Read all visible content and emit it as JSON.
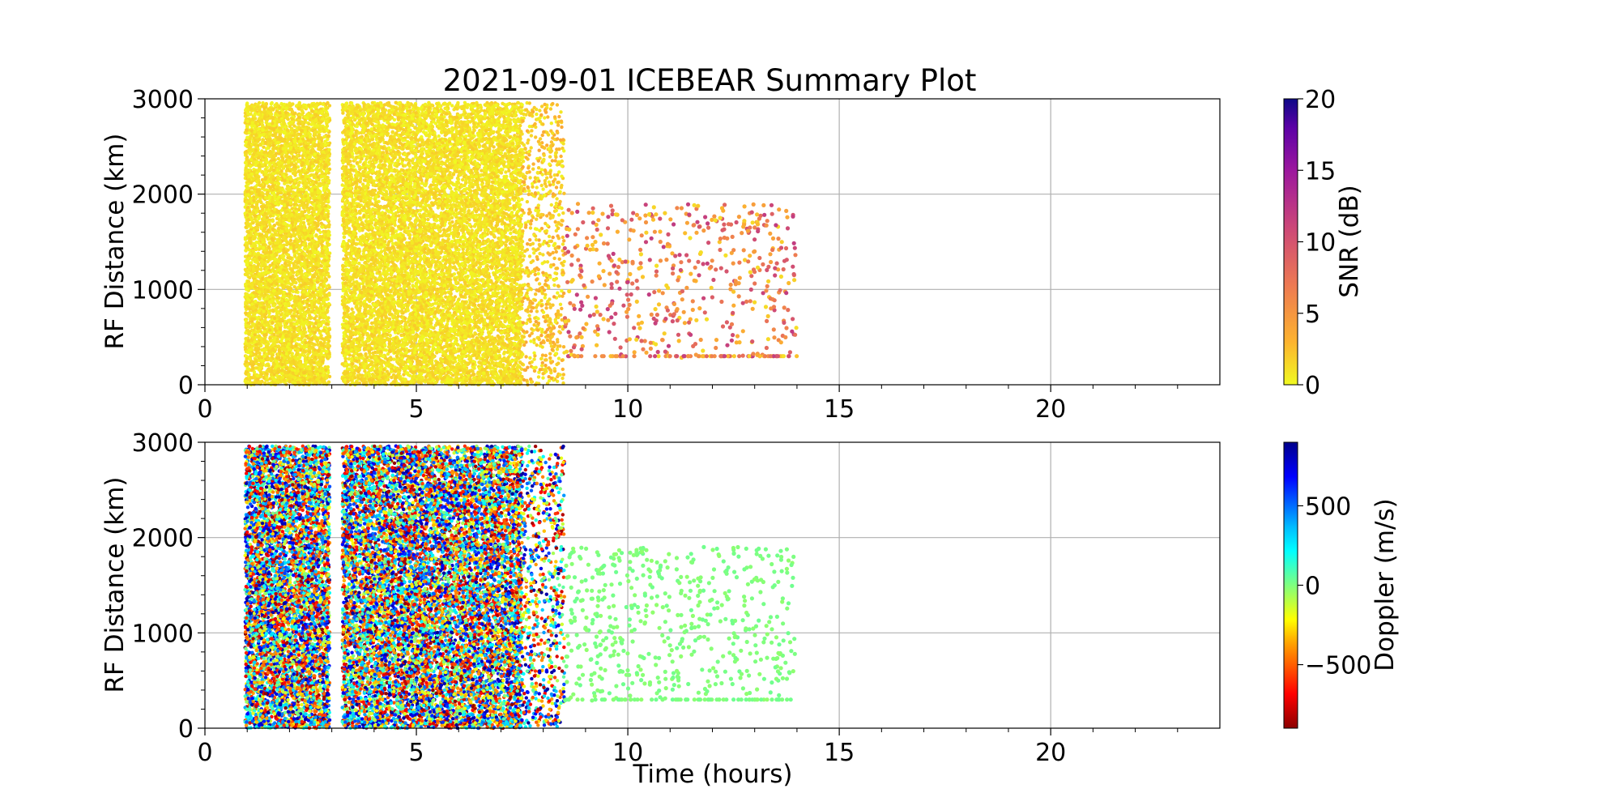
{
  "title": "2021-09-01 ICEBEAR Summary Plot",
  "xlabel": "Time (hours)",
  "colors": {
    "snr_low": "#f0f921",
    "snr_mid": "#e16462",
    "snr_high": "#0d0887",
    "doppler_positive": "#00008b",
    "doppler_zero": "#7fff7f",
    "doppler_negative": "#8b0000",
    "grid": "#b0b0b0"
  },
  "chart_data": [
    {
      "type": "scatter",
      "ylabel": "RF Distance (km)",
      "colorbar_label": "SNR (dB)",
      "colormap": "plasma_r",
      "xlim": [
        0,
        24
      ],
      "ylim": [
        0,
        3000
      ],
      "x_ticks": [
        "0",
        "5",
        "10",
        "15",
        "20"
      ],
      "y_ticks": [
        "0",
        "1000",
        "2000",
        "3000"
      ],
      "colorbar_ticks": [
        "0",
        "5",
        "10",
        "15",
        "20"
      ],
      "colorbar_range": [
        0,
        20
      ],
      "grid": true,
      "segments": [
        {
          "time_range": [
            0.95,
            2.95
          ],
          "distance_range": [
            0,
            2960
          ],
          "value_range": [
            0,
            2
          ],
          "density": "dense"
        },
        {
          "time_range": [
            3.25,
            7.5
          ],
          "distance_range": [
            0,
            2960
          ],
          "value_range": [
            0,
            2
          ],
          "density": "dense"
        },
        {
          "time_range": [
            7.5,
            8.5
          ],
          "distance_range": [
            0,
            2960
          ],
          "value_range": [
            0,
            4
          ],
          "density": "medium"
        },
        {
          "time_range": [
            8.5,
            14.0
          ],
          "distance_range": [
            280,
            1900
          ],
          "value_range": [
            1,
            12
          ],
          "density": "sparse"
        }
      ]
    },
    {
      "type": "scatter",
      "ylabel": "RF Distance (km)",
      "xlabel": "Time (hours)",
      "colorbar_label": "Doppler (m/s)",
      "colormap": "jet_r",
      "xlim": [
        0,
        24
      ],
      "ylim": [
        0,
        3000
      ],
      "x_ticks": [
        "0",
        "5",
        "10",
        "15",
        "20"
      ],
      "y_ticks": [
        "0",
        "1000",
        "2000",
        "3000"
      ],
      "colorbar_ticks": [
        "500",
        "0",
        "−500"
      ],
      "colorbar_range": [
        -900,
        900
      ],
      "grid": true,
      "segments": [
        {
          "time_range": [
            0.95,
            2.95
          ],
          "distance_range": [
            0,
            2960
          ],
          "value_range": [
            -900,
            900
          ],
          "density": "dense"
        },
        {
          "time_range": [
            3.25,
            7.5
          ],
          "distance_range": [
            0,
            2960
          ],
          "value_range": [
            -900,
            900
          ],
          "density": "dense"
        },
        {
          "time_range": [
            7.5,
            8.5
          ],
          "distance_range": [
            0,
            2960
          ],
          "value_range": [
            -900,
            900
          ],
          "density": "medium"
        },
        {
          "time_range": [
            8.5,
            14.0
          ],
          "distance_range": [
            280,
            1900
          ],
          "value_range": [
            -30,
            30
          ],
          "density": "sparse"
        }
      ]
    }
  ]
}
